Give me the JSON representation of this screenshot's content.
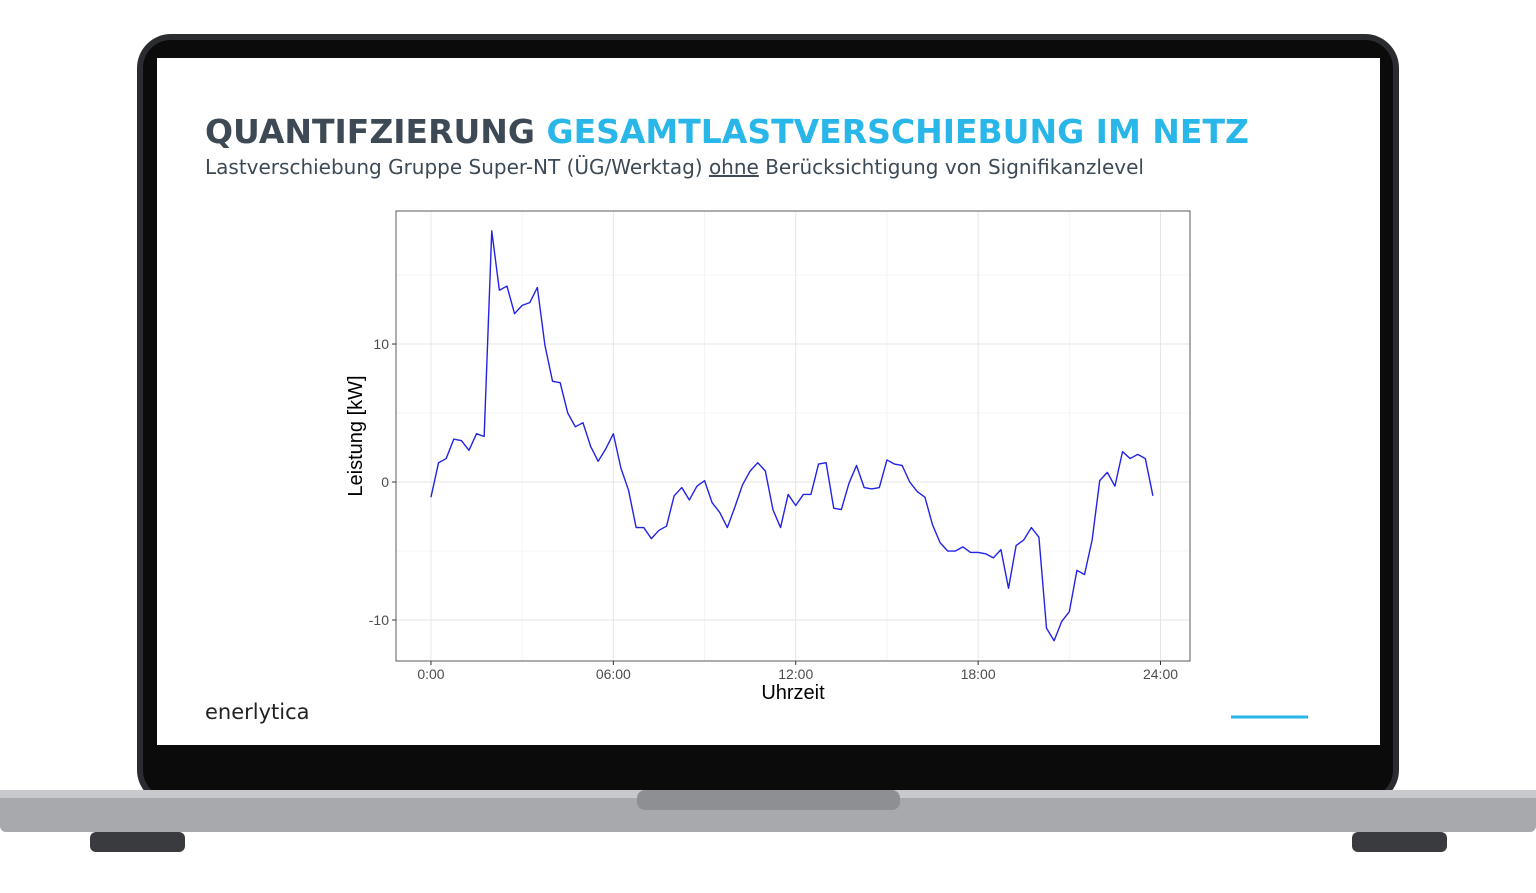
{
  "slide": {
    "title_dark": "QUANTIFZIERUNG",
    "title_accent": "GESAMTLASTVERSCHIEBUNG IM NETZ",
    "subtitle_before": "Lastverschiebung Gruppe Super-NT (ÜG/Werktag)",
    "subtitle_underlined": "ohne",
    "subtitle_after": "Berücksichtigung von Signifikanzlevel",
    "logo": "enerlytica"
  },
  "chart_data": {
    "type": "line",
    "x_label": "Uhrzeit",
    "y_label": "Leistung [kW]",
    "color": "#2323e6",
    "grid": true,
    "x": [
      0,
      0.25,
      0.5,
      0.75,
      1,
      1.25,
      1.5,
      1.75,
      2,
      2.25,
      2.5,
      2.75,
      3,
      3.25,
      3.5,
      3.75,
      4,
      4.25,
      4.5,
      4.75,
      5,
      5.25,
      5.5,
      5.75,
      6,
      6.25,
      6.5,
      6.75,
      7,
      7.25,
      7.5,
      7.75,
      8,
      8.25,
      8.5,
      8.75,
      9,
      9.25,
      9.5,
      9.75,
      10,
      10.25,
      10.5,
      10.75,
      11,
      11.25,
      11.5,
      11.75,
      12,
      12.25,
      12.5,
      12.75,
      13,
      13.25,
      13.5,
      13.75,
      14,
      14.25,
      14.5,
      14.75,
      15,
      15.25,
      15.5,
      15.75,
      16,
      16.25,
      16.5,
      16.75,
      17,
      17.25,
      17.5,
      17.75,
      18,
      18.25,
      18.5,
      18.75,
      19,
      19.25,
      19.5,
      19.75,
      20,
      20.25,
      20.5,
      20.75,
      21,
      21.25,
      21.5,
      21.75,
      22,
      22.25,
      22.5,
      22.75,
      23,
      23.25,
      23.5,
      23.75
    ],
    "values": [
      -1.1,
      1.4,
      1.7,
      3.1,
      3.0,
      2.3,
      3.5,
      3.3,
      18.2,
      13.9,
      14.2,
      12.2,
      12.8,
      13.0,
      14.1,
      9.9,
      7.3,
      7.2,
      5.0,
      4.0,
      4.3,
      2.6,
      1.5,
      2.4,
      3.5,
      1.0,
      -0.6,
      -3.3,
      -3.3,
      -4.1,
      -3.5,
      -3.2,
      -1.0,
      -0.4,
      -1.3,
      -0.3,
      0.1,
      -1.5,
      -2.2,
      -3.3,
      -1.8,
      -0.2,
      0.8,
      1.4,
      0.8,
      -2.0,
      -3.3,
      -0.9,
      -1.7,
      -0.9,
      -0.9,
      1.3,
      1.4,
      -1.9,
      -2.0,
      -0.1,
      1.2,
      -0.4,
      -0.5,
      -0.4,
      1.6,
      1.3,
      1.2,
      0.0,
      -0.7,
      -1.1,
      -3.1,
      -4.4,
      -5.0,
      -5.0,
      -4.7,
      -5.1,
      -5.1,
      -5.2,
      -5.5,
      -4.9,
      -7.7,
      -4.6,
      -4.2,
      -3.3,
      -4.0,
      -10.6,
      -11.5,
      -10.1,
      -9.4,
      -6.4,
      -6.7,
      -4.2,
      0.1,
      0.7,
      -0.3,
      2.2,
      1.7,
      2.0,
      1.7,
      -1.0
    ],
    "xlim": [
      -1.15,
      24.97
    ],
    "xticks": [
      {
        "value": 0,
        "label": "0:00"
      },
      {
        "value": 6,
        "label": "06:00"
      },
      {
        "value": 12,
        "label": "12:00"
      },
      {
        "value": 18,
        "label": "18:00"
      },
      {
        "value": 24,
        "label": "24:00"
      }
    ],
    "ylim": [
      -12.97,
      19.64
    ],
    "yticks": [
      -10,
      0,
      10
    ]
  }
}
